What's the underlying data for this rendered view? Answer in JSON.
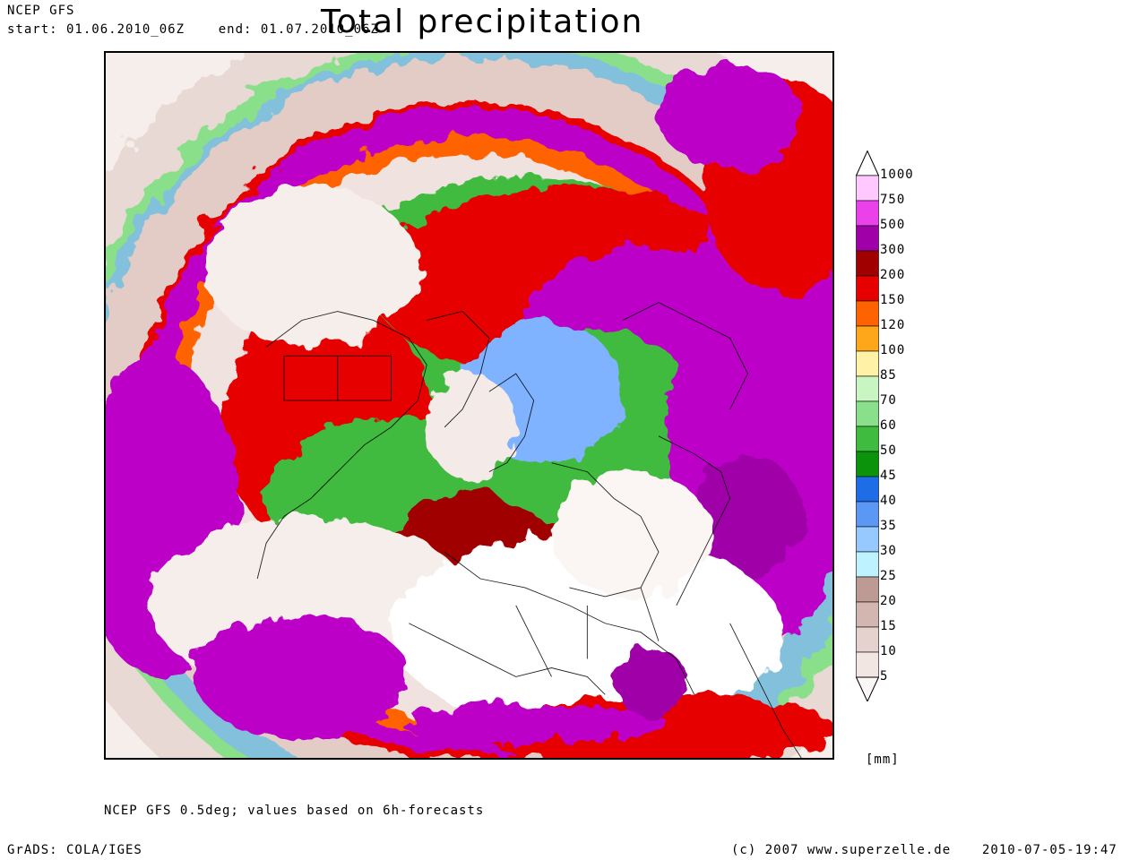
{
  "header": {
    "model": "NCEP GFS",
    "period": "start: 01.06.2010_06Z    end: 01.07.2010_06Z",
    "title": "Total precipitation"
  },
  "map": {
    "projection": "polar-stereographic-north",
    "field": "total-precipitation",
    "dominant_colors": {
      "dry": "#fbf2ee",
      "wet": "#bc00c8",
      "medium": "#e60000",
      "green": "#3fbb3f",
      "blue": "#7fb2ff"
    }
  },
  "colorbar": {
    "levels": [
      "1000",
      "750",
      "500",
      "300",
      "200",
      "150",
      "120",
      "100",
      "85",
      "70",
      "60",
      "50",
      "45",
      "40",
      "35",
      "30",
      "25",
      "20",
      "15",
      "10",
      "5"
    ],
    "colors": [
      "#ffc8ff",
      "#eb41eb",
      "#a000a8",
      "#a00000",
      "#e60000",
      "#ff6300",
      "#ffa71a",
      "#fff2a6",
      "#c9f5c2",
      "#8ae08a",
      "#3fbb3f",
      "#0b940b",
      "#1e6de6",
      "#5b98f5",
      "#97c9ff",
      "#bff2ff",
      "#bd9a94",
      "#d3b6b0",
      "#e5d2ce",
      "#f2e6e3",
      "#fbf7f6"
    ],
    "unit": "[mm]"
  },
  "footer": {
    "note": "NCEP GFS 0.5deg; values based on 6h-forecasts",
    "grads": "GrADS: COLA/IGES",
    "copyright": "(c) 2007 www.superzelle.de",
    "timestamp": "2010-07-05-19:47"
  }
}
